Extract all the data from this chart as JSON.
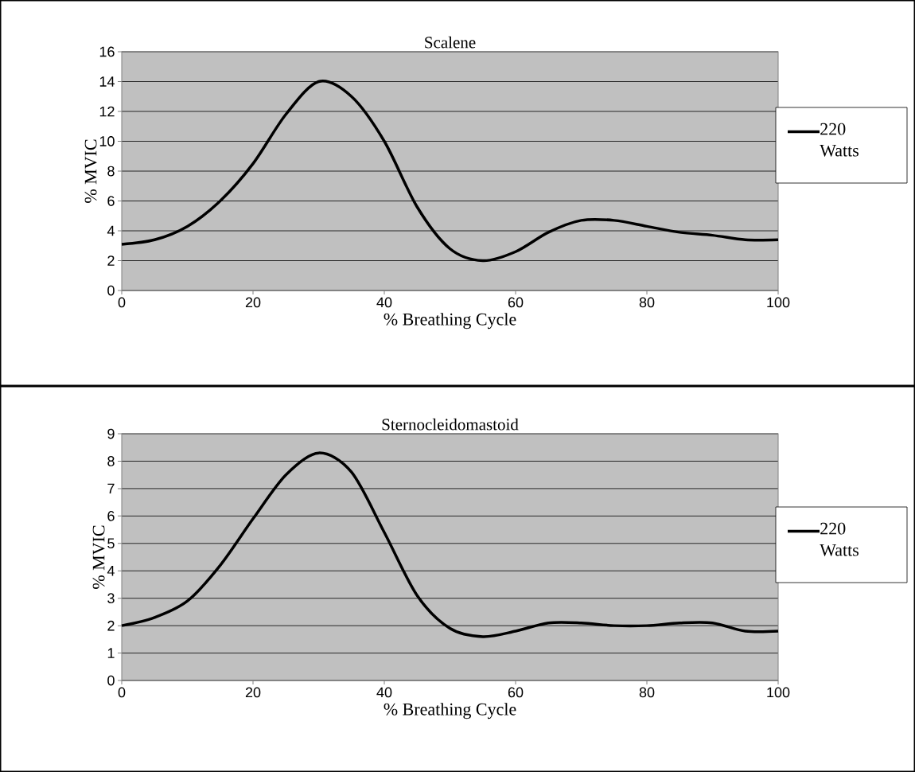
{
  "chart_data": [
    {
      "type": "line",
      "title": "Scalene",
      "xlabel": "% Breathing Cycle",
      "ylabel": "% MVIC",
      "x": [
        0,
        5,
        10,
        15,
        20,
        25,
        30,
        35,
        40,
        45,
        50,
        55,
        60,
        65,
        70,
        75,
        80,
        85,
        90,
        95,
        100
      ],
      "xlim": [
        0,
        100
      ],
      "xticks": [
        0,
        20,
        40,
        60,
        80,
        100
      ],
      "ylim": [
        0,
        16
      ],
      "yticks": [
        0,
        2,
        4,
        6,
        8,
        10,
        12,
        14,
        16
      ],
      "grid": "y",
      "legend": "right",
      "marker": "none",
      "line_style": "solid",
      "series": [
        {
          "name": "220 Watts",
          "color": "#000000",
          "values": [
            3.1,
            3.4,
            4.3,
            6.0,
            8.5,
            11.8,
            14.0,
            13.0,
            10.0,
            5.6,
            2.8,
            2.0,
            2.6,
            3.9,
            4.7,
            4.7,
            4.3,
            3.9,
            3.7,
            3.4,
            3.4
          ]
        }
      ]
    },
    {
      "type": "line",
      "title": "Sternocleidomastoid",
      "xlabel": "% Breathing Cycle",
      "ylabel": "% MVIC",
      "x": [
        0,
        5,
        10,
        15,
        20,
        25,
        30,
        35,
        40,
        45,
        50,
        55,
        60,
        65,
        70,
        75,
        80,
        85,
        90,
        95,
        100
      ],
      "xlim": [
        0,
        100
      ],
      "xticks": [
        0,
        20,
        40,
        60,
        80,
        100
      ],
      "ylim": [
        0,
        9
      ],
      "yticks": [
        0,
        1,
        2,
        3,
        4,
        5,
        6,
        7,
        8,
        9
      ],
      "grid": "y",
      "legend": "right",
      "marker": "none",
      "line_style": "solid",
      "series": [
        {
          "name": "220 Watts",
          "color": "#000000",
          "values": [
            2.0,
            2.3,
            2.9,
            4.2,
            5.9,
            7.5,
            8.3,
            7.6,
            5.4,
            3.1,
            1.9,
            1.6,
            1.8,
            2.1,
            2.1,
            2.0,
            2.0,
            2.1,
            2.1,
            1.8,
            1.8
          ]
        }
      ]
    }
  ]
}
